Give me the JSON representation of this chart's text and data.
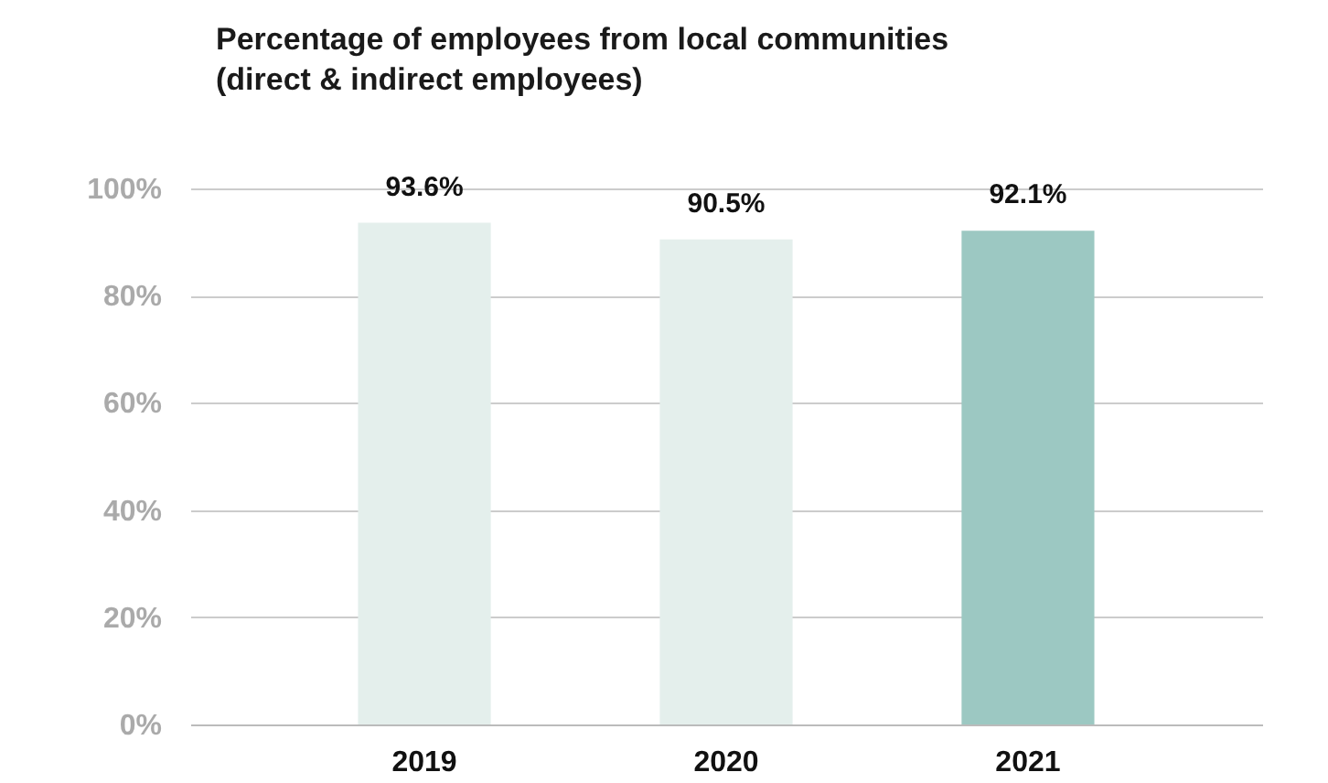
{
  "chart_data": {
    "type": "bar",
    "title": "Percentage of employees from local communities (direct & indirect employees)",
    "categories": [
      "2019",
      "2020",
      "2021"
    ],
    "values": [
      93.6,
      90.5,
      92.1
    ],
    "colors": [
      "#e4efec",
      "#e4efec",
      "#9cc8c2"
    ],
    "value_labels": [
      "93.6%",
      "90.5%",
      "92.1%"
    ],
    "ylim": [
      0,
      100
    ],
    "yticks": [
      {
        "value": 0,
        "label": "0%"
      },
      {
        "value": 20,
        "label": "20%"
      },
      {
        "value": 40,
        "label": "40%"
      },
      {
        "value": 60,
        "label": "60%"
      },
      {
        "value": 80,
        "label": "80%"
      },
      {
        "value": 100,
        "label": "100%"
      }
    ],
    "grid": "y"
  }
}
